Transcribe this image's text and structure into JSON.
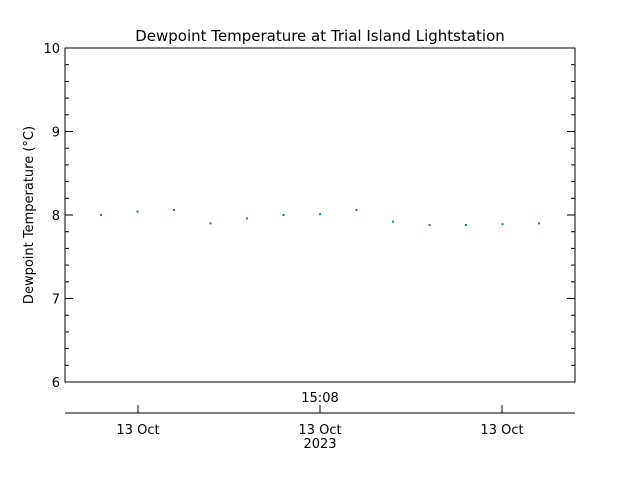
{
  "chart_data": {
    "type": "scatter",
    "title": "Dewpoint Temperature at Trial Island Lightstation",
    "ylabel": "Dewpoint Temperature (°C)",
    "ylim": [
      6,
      10
    ],
    "y_ticks": [
      "6",
      "7",
      "8",
      "9",
      "10"
    ],
    "top_axis_label": "15:08",
    "x_ticks": [
      "13 Oct",
      "13 Oct",
      "13 Oct"
    ],
    "x_sublabel": "2023",
    "point_color": "#1f77b4",
    "series": [
      {
        "values": [
          8.0,
          8.04,
          8.06,
          7.9,
          7.96,
          8.0,
          8.01,
          8.06,
          7.92,
          7.88,
          7.88,
          7.89,
          7.9
        ]
      }
    ]
  }
}
